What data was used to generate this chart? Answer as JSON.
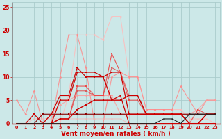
{
  "bg_color": "#cce8e8",
  "grid_color": "#aacccc",
  "title": "Vent moyen/en rafales ( km/h )",
  "xlim": [
    -0.5,
    23.5
  ],
  "ylim": [
    0,
    26
  ],
  "yticks": [
    0,
    5,
    10,
    15,
    20,
    25
  ],
  "xticks": [
    0,
    1,
    2,
    3,
    4,
    5,
    6,
    7,
    8,
    9,
    10,
    11,
    12,
    13,
    14,
    15,
    16,
    17,
    18,
    19,
    20,
    21,
    22,
    23
  ],
  "lines": [
    {
      "x": [
        0,
        1,
        2,
        3,
        4,
        5,
        6,
        7,
        8,
        9,
        10,
        11,
        12,
        13,
        14,
        15,
        16,
        17,
        18,
        19,
        20,
        21,
        22,
        23
      ],
      "y": [
        0,
        0,
        2,
        0,
        0,
        5,
        5,
        11,
        11,
        11,
        10,
        11,
        11,
        2,
        2,
        2,
        2,
        2,
        2,
        2,
        0,
        0,
        2,
        2
      ],
      "color": "#cc0000",
      "lw": 0.9,
      "marker": "s",
      "ms": 1.8,
      "alpha": 1.0,
      "zorder": 5
    },
    {
      "x": [
        0,
        1,
        2,
        3,
        4,
        5,
        6,
        7,
        8,
        9,
        10,
        11,
        12,
        13,
        14,
        15,
        16,
        17,
        18,
        19,
        20,
        21,
        22,
        23
      ],
      "y": [
        0,
        0,
        0,
        0,
        2,
        6,
        6,
        12,
        10,
        10,
        10,
        5,
        6,
        0,
        0,
        0,
        0,
        0,
        0,
        0,
        0,
        0,
        0,
        0
      ],
      "color": "#cc0000",
      "lw": 0.9,
      "marker": "s",
      "ms": 1.8,
      "alpha": 1.0,
      "zorder": 5
    },
    {
      "x": [
        0,
        1,
        2,
        3,
        4,
        5,
        6,
        7,
        8,
        9,
        10,
        11,
        12,
        13,
        14,
        15,
        16,
        17,
        18,
        19,
        20,
        21,
        22,
        23
      ],
      "y": [
        0,
        0,
        0,
        2,
        2,
        2,
        2,
        2,
        2,
        2,
        2,
        2,
        2,
        2,
        2,
        2,
        2,
        2,
        2,
        2,
        2,
        2,
        2,
        2
      ],
      "color": "#880000",
      "lw": 0.8,
      "marker": "s",
      "ms": 1.5,
      "alpha": 1.0,
      "zorder": 4
    },
    {
      "x": [
        0,
        1,
        2,
        3,
        4,
        5,
        6,
        7,
        8,
        9,
        10,
        11,
        12,
        13,
        14,
        15,
        16,
        17,
        18,
        19,
        20,
        21,
        22,
        23
      ],
      "y": [
        5,
        2,
        7,
        0,
        0,
        10,
        19,
        19,
        12,
        0,
        0,
        10,
        11,
        10,
        10,
        3,
        3,
        3,
        3,
        8,
        5,
        2,
        5,
        5
      ],
      "color": "#ff8888",
      "lw": 0.8,
      "marker": "D",
      "ms": 1.8,
      "alpha": 0.85,
      "zorder": 3
    },
    {
      "x": [
        0,
        1,
        2,
        3,
        4,
        5,
        6,
        7,
        8,
        9,
        10,
        11,
        12,
        13,
        14,
        15,
        16,
        17,
        18,
        19,
        20,
        21,
        22,
        23
      ],
      "y": [
        0,
        0,
        0,
        0,
        0,
        0,
        6,
        19,
        19,
        19,
        18,
        23,
        23,
        10,
        10,
        3,
        3,
        3,
        3,
        3,
        1,
        1,
        1,
        0
      ],
      "color": "#ffbbbb",
      "lw": 0.8,
      "marker": "D",
      "ms": 1.8,
      "alpha": 0.85,
      "zorder": 2
    },
    {
      "x": [
        0,
        1,
        2,
        3,
        4,
        5,
        6,
        7,
        8,
        9,
        10,
        11,
        12,
        13,
        14,
        15,
        16,
        17,
        18,
        19,
        20,
        21,
        22,
        23
      ],
      "y": [
        0,
        0,
        0,
        0,
        0,
        1,
        1,
        7,
        7,
        6,
        6,
        12,
        11,
        6,
        6,
        2,
        2,
        2,
        2,
        2,
        0,
        0,
        2,
        2
      ],
      "color": "#dd5555",
      "lw": 0.8,
      "marker": "s",
      "ms": 1.5,
      "alpha": 0.9,
      "zorder": 4
    },
    {
      "x": [
        0,
        1,
        2,
        3,
        4,
        5,
        6,
        7,
        8,
        9,
        10,
        11,
        12,
        13,
        14,
        15,
        16,
        17,
        18,
        19,
        20,
        21,
        22,
        23
      ],
      "y": [
        0,
        0,
        0,
        0,
        0,
        1,
        1,
        8,
        8,
        6,
        6,
        15,
        11,
        5,
        5,
        2,
        2,
        2,
        2,
        2,
        0,
        3,
        2,
        2
      ],
      "color": "#ee4444",
      "lw": 0.8,
      "marker": "s",
      "ms": 1.5,
      "alpha": 0.9,
      "zorder": 4
    },
    {
      "x": [
        0,
        1,
        2,
        3,
        4,
        5,
        6,
        7,
        8,
        9,
        10,
        11,
        12,
        13,
        14,
        15,
        16,
        17,
        18,
        19,
        20,
        21,
        22,
        23
      ],
      "y": [
        0,
        0,
        0,
        0,
        0,
        1,
        1,
        3,
        4,
        5,
        5,
        5,
        5,
        6,
        6,
        2,
        2,
        2,
        2,
        2,
        0,
        0,
        2,
        2
      ],
      "color": "#cc0000",
      "lw": 1.0,
      "marker": "s",
      "ms": 1.8,
      "alpha": 1.0,
      "zorder": 5
    },
    {
      "x": [
        0,
        1,
        2,
        3,
        4,
        5,
        6,
        7,
        8,
        9,
        10,
        11,
        12,
        13,
        14,
        15,
        16,
        17,
        18,
        19,
        20,
        21,
        22,
        23
      ],
      "y": [
        0,
        0,
        1,
        1,
        1,
        1,
        1,
        1,
        1,
        1,
        1,
        1,
        1,
        0,
        0,
        0,
        0,
        0,
        0,
        0,
        0,
        0,
        0,
        0
      ],
      "color": "#ffaaaa",
      "lw": 0.7,
      "marker": "s",
      "ms": 1.4,
      "alpha": 0.7,
      "zorder": 3
    },
    {
      "x": [
        0,
        1,
        2,
        3,
        4,
        5,
        6,
        7,
        8,
        9,
        10,
        11,
        12,
        13,
        14,
        15,
        16,
        17,
        18,
        19,
        20,
        21,
        22,
        23
      ],
      "y": [
        0,
        0,
        0,
        0,
        2,
        4,
        5,
        6,
        6,
        6,
        6,
        6,
        2,
        2,
        2,
        2,
        2,
        2,
        2,
        2,
        2,
        3,
        5,
        5
      ],
      "color": "#ff9999",
      "lw": 0.8,
      "marker": "D",
      "ms": 1.8,
      "alpha": 0.8,
      "zorder": 3
    },
    {
      "x": [
        0,
        1,
        2,
        3,
        4,
        5,
        6,
        7,
        8,
        9,
        10,
        11,
        12,
        13,
        14,
        15,
        16,
        17,
        18,
        19,
        20,
        21,
        22,
        23
      ],
      "y": [
        0,
        0,
        0,
        0,
        0,
        0,
        0,
        0,
        0,
        0,
        0,
        0,
        0,
        0,
        0,
        0,
        0,
        1,
        1,
        0,
        2,
        2,
        2,
        2
      ],
      "color": "#222222",
      "lw": 0.8,
      "marker": "s",
      "ms": 1.4,
      "alpha": 1.0,
      "zorder": 6
    }
  ]
}
